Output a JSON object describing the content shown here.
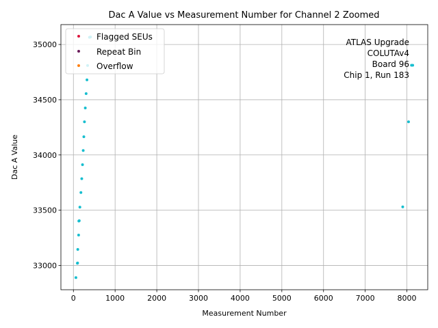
{
  "chart_data": {
    "type": "scatter",
    "title": "Dac A Value vs Measurement Number for Channel 2 Zoomed",
    "xlabel": "Measurement Number",
    "ylabel": "Dac A Value",
    "xlim": [
      -300,
      8500
    ],
    "ylim": [
      32780,
      35180
    ],
    "xticks": [
      0,
      1000,
      2000,
      3000,
      4000,
      5000,
      6000,
      7000,
      8000
    ],
    "yticks": [
      33000,
      33500,
      34000,
      34500,
      35000
    ],
    "grid": true,
    "legend_position": "top-left",
    "legend": [
      {
        "label": "Flagged SEUs",
        "color": "#dc143c"
      },
      {
        "label": "Repeat Bin",
        "color": "#6a1b5a"
      },
      {
        "label": "Overflow",
        "color": "#ff7f0e"
      }
    ],
    "annotation": [
      "ATLAS Upgrade",
      "COLUTAv4",
      "Board 96",
      "Chip 1, Run 183"
    ],
    "series": [
      {
        "color": "#17becf",
        "points": [
          [
            60,
            32890
          ],
          [
            95,
            33020
          ],
          [
            100,
            33022
          ],
          [
            105,
            33145
          ],
          [
            125,
            33275
          ],
          [
            130,
            33402
          ],
          [
            140,
            33405
          ],
          [
            155,
            33528
          ],
          [
            180,
            33660
          ],
          [
            200,
            33785
          ],
          [
            218,
            33912
          ],
          [
            235,
            34040
          ],
          [
            250,
            34165
          ],
          [
            265,
            34300
          ],
          [
            285,
            34425
          ],
          [
            305,
            34555
          ],
          [
            325,
            34680
          ],
          [
            340,
            34810
          ],
          [
            385,
            35065
          ],
          [
            410,
            35068
          ],
          [
            7900,
            33530
          ],
          [
            8040,
            34300
          ],
          [
            8110,
            34812
          ],
          [
            8140,
            34812
          ]
        ]
      }
    ]
  }
}
